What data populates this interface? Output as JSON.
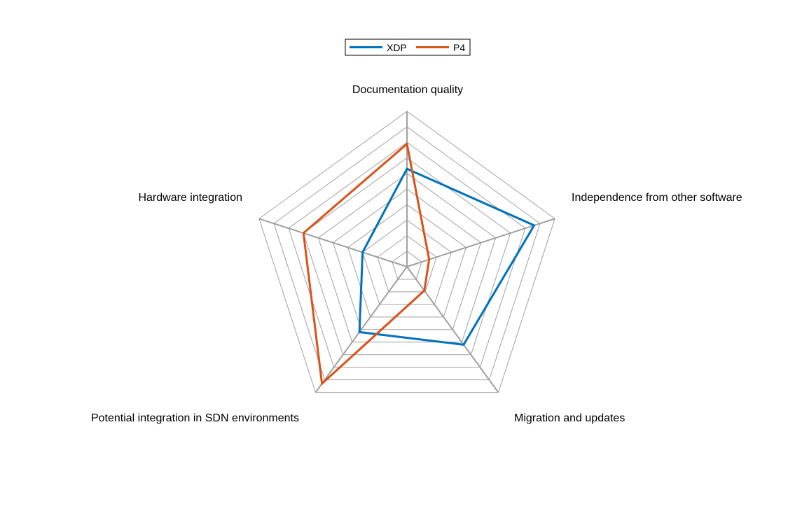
{
  "chart_data": {
    "type": "radar",
    "axes": [
      "Documentation quality",
      "Independence from other software",
      "Migration and updates",
      "Potential integration in SDN environments",
      "Hardware integration"
    ],
    "rlim": [
      0,
      10
    ],
    "rings": 10,
    "grid": true,
    "legend": "top-center",
    "series": [
      {
        "name": "XDP",
        "color": "#0072bd",
        "values": [
          6.3,
          8.6,
          6.2,
          5.2,
          3.0
        ]
      },
      {
        "name": "P4",
        "color": "#d95319",
        "values": [
          7.9,
          1.5,
          1.9,
          9.3,
          7.0
        ]
      }
    ]
  }
}
